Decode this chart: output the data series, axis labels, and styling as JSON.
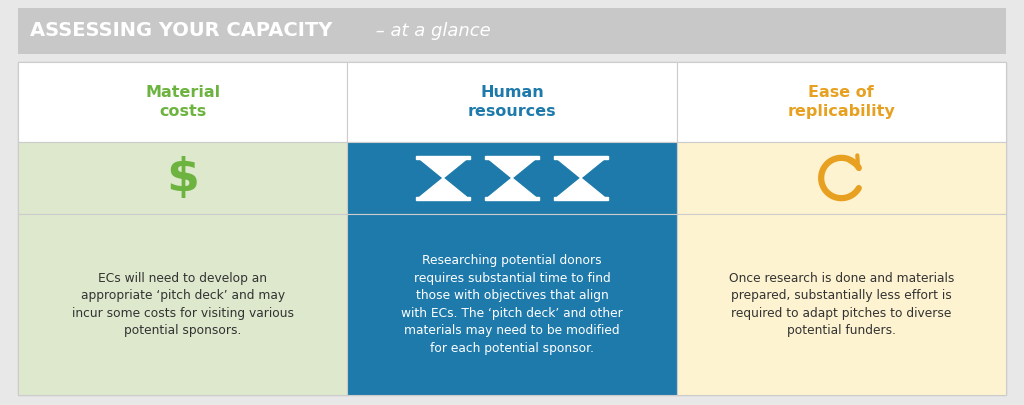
{
  "title_bold": "ASSESSING YOUR CAPACITY",
  "title_regular": " – at a glance",
  "header_bg": "#c8c8c8",
  "outer_bg": "#e8e8e8",
  "col1_header": "Material\ncosts",
  "col2_header": "Human\nresources",
  "col3_header": "Ease of\nreplicability",
  "col1_header_color": "#6db33f",
  "col2_header_color": "#1e7aab",
  "col3_header_color": "#e8a020",
  "col1_icon_color": "#6db33f",
  "col2_icon_color": "#ffffff",
  "col3_icon_color": "#e8a020",
  "col1_icon_bg": "#dde8cc",
  "col2_icon_bg": "#1e7aab",
  "col3_icon_bg": "#fef3d0",
  "col1_text_bg": "#dde8cc",
  "col2_text_bg": "#1e7aab",
  "col3_text_bg": "#fef3d0",
  "col1_text": "ECs will need to develop an\nappropriate ‘pitch deck’ and may\nincur some costs for visiting various\npotential sponsors.",
  "col2_text": "Researching potential donors\nrequires substantial time to find\nthose with objectives that align\nwith ECs. The ‘pitch deck’ and other\nmaterials may need to be modified\nfor each potential sponsor.",
  "col3_text": "Once research is done and materials\nprepared, substantially less effort is\nrequired to adapt pitches to diverse\npotential funders.",
  "col1_text_color": "#333333",
  "col2_text_color": "#ffffff",
  "col3_text_color": "#333333",
  "border_color": "#cccccc",
  "header_row_bg": "#ffffff",
  "title_bold_color": "#ffffff",
  "title_italic_color": "#ffffff"
}
